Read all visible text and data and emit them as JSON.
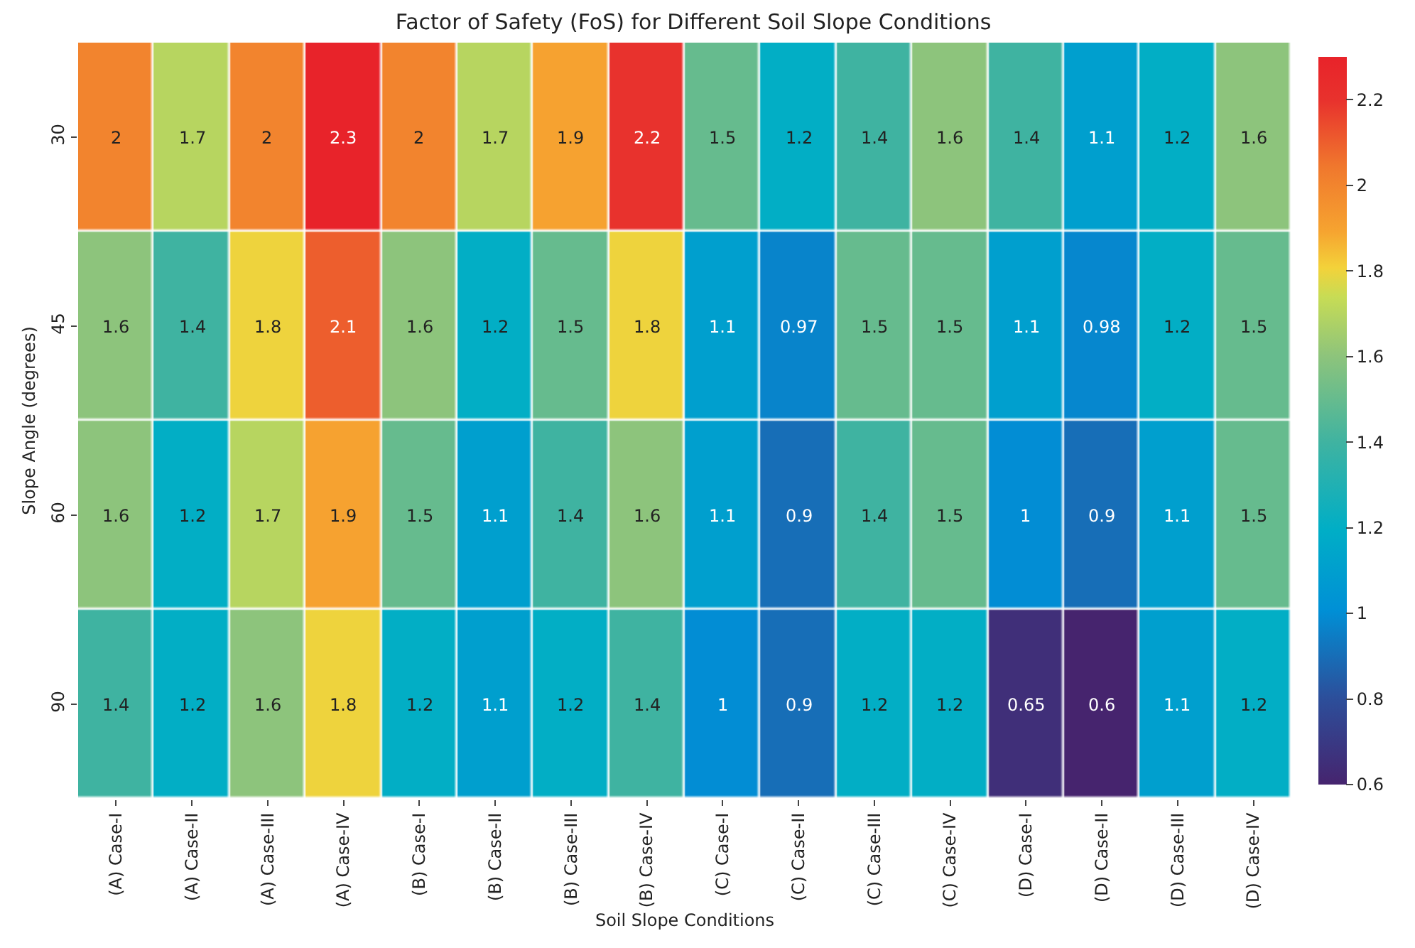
{
  "chart_data": {
    "type": "heatmap",
    "title": "Factor of Safety (FoS) for Different Soil Slope Conditions",
    "xlabel": "Soil Slope Conditions",
    "ylabel": "Slope Angle (degrees)",
    "categories": [
      "(A) Case-I",
      "(A) Case-II",
      "(A) Case-III",
      "(A) Case-IV",
      "(B) Case-I",
      "(B) Case-II",
      "(B) Case-III",
      "(B) Case-IV",
      "(C) Case-I",
      "(C) Case-II",
      "(C) Case-III",
      "(C) Case-IV",
      "(D) Case-I",
      "(D) Case-II",
      "(D) Case-III",
      "(D) Case-IV"
    ],
    "y_categories": [
      "30",
      "45",
      "60",
      "90"
    ],
    "cells": [
      [
        2,
        1.7,
        2,
        2.3,
        2,
        1.7,
        1.9,
        2.2,
        1.5,
        1.2,
        1.4,
        1.6,
        1.4,
        1.1,
        1.2,
        1.6
      ],
      [
        1.6,
        1.4,
        1.8,
        2.1,
        1.6,
        1.2,
        1.5,
        1.8,
        1.1,
        0.97,
        1.5,
        1.5,
        1.1,
        0.98,
        1.2,
        1.5
      ],
      [
        1.6,
        1.2,
        1.7,
        1.9,
        1.5,
        1.1,
        1.4,
        1.6,
        1.1,
        0.9,
        1.4,
        1.5,
        1,
        0.9,
        1.1,
        1.5
      ],
      [
        1.4,
        1.2,
        1.6,
        1.8,
        1.2,
        1.1,
        1.2,
        1.4,
        1,
        0.9,
        1.2,
        1.2,
        0.65,
        0.6,
        1.1,
        1.2
      ]
    ],
    "data_labels": true,
    "clim": [
      0.6,
      2.3
    ],
    "cticks": [
      0.6,
      0.8,
      1.0,
      1.2,
      1.4,
      1.6,
      1.8,
      2.0,
      2.2
    ]
  }
}
